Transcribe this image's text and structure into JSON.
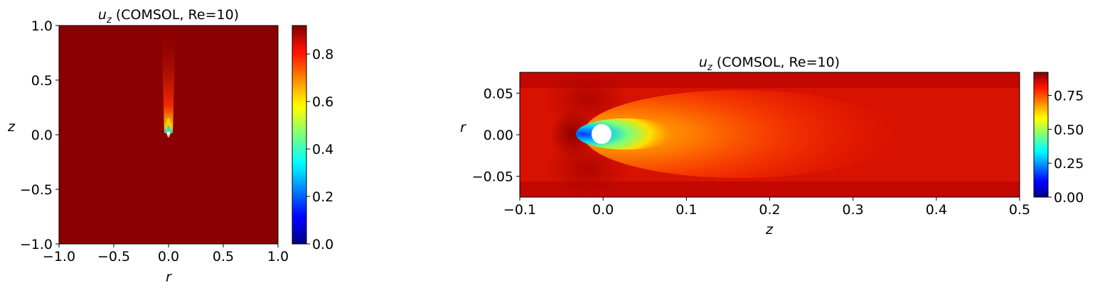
{
  "chart_data": [
    {
      "type": "heatmap",
      "title_var": "u",
      "title_sub": "z",
      "title_rest": " (COMSOL, Re=10)",
      "xlabel": "r",
      "ylabel": "z",
      "xlim": [
        -1.0,
        1.0
      ],
      "ylim": [
        -1.0,
        1.0
      ],
      "xticks": [
        "−1.0",
        "−0.5",
        "0.0",
        "0.5",
        "1.0"
      ],
      "xtick_values": [
        -1.0,
        -0.5,
        0.0,
        0.5,
        1.0
      ],
      "yticks": [
        "−1.0",
        "−0.5",
        "0.0",
        "0.5",
        "1.0"
      ],
      "ytick_values": [
        -1.0,
        -0.5,
        0.0,
        0.5,
        1.0
      ],
      "colorbar": {
        "range": [
          0.0,
          0.92
        ],
        "ticks": [
          "0.0",
          "0.2",
          "0.4",
          "0.6",
          "0.8"
        ],
        "tick_values": [
          0.0,
          0.2,
          0.4,
          0.6,
          0.8
        ]
      },
      "colormap": "jet",
      "background_value": 0.92,
      "sphere": {
        "r": 0.0,
        "z": 0.0
      },
      "wake": {
        "direction": "+z",
        "min_value": 0.3
      }
    },
    {
      "type": "heatmap",
      "title_var": "u",
      "title_sub": "z",
      "title_rest": " (COMSOL, Re=10)",
      "xlabel": "z",
      "ylabel": "r",
      "xlim": [
        -0.1,
        0.5
      ],
      "ylim": [
        -0.075,
        0.075
      ],
      "xticks": [
        "−0.1",
        "0.0",
        "0.1",
        "0.2",
        "0.3",
        "0.4",
        "0.5"
      ],
      "xtick_values": [
        -0.1,
        0.0,
        0.1,
        0.2,
        0.3,
        0.4,
        0.5
      ],
      "yticks": [
        "−0.05",
        "0.00",
        "0.05"
      ],
      "ytick_values": [
        -0.05,
        0.0,
        0.05
      ],
      "colorbar": {
        "range": [
          0.0,
          0.92
        ],
        "ticks": [
          "0.00",
          "0.25",
          "0.50",
          "0.75"
        ],
        "tick_values": [
          0.0,
          0.25,
          0.5,
          0.75
        ]
      },
      "colormap": "jet",
      "background_value": 0.92,
      "sphere": {
        "z": 0.0,
        "r": 0.0,
        "radius": 0.01
      },
      "wake": {
        "direction": "+z",
        "min_value": 0.2
      }
    }
  ]
}
